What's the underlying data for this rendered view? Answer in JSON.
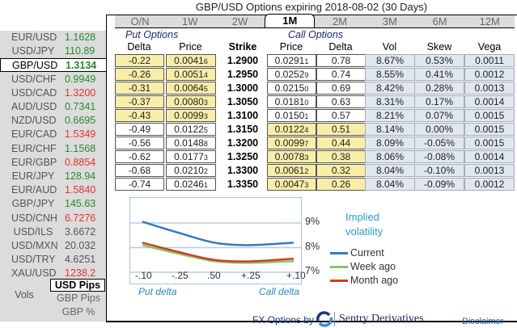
{
  "title": "GBP/USD Options expiring 2018-08-02 (30 Days)",
  "pairs": [
    {
      "name": "EUR/USD",
      "value": "1.1628",
      "dir": "up"
    },
    {
      "name": "USD/JPY",
      "value": "110.89",
      "dir": "up"
    },
    {
      "name": "GBP/USD",
      "value": "1.3134",
      "dir": "up",
      "selected": true
    },
    {
      "name": "USD/CHF",
      "value": "0.9949",
      "dir": "up"
    },
    {
      "name": "USD/CAD",
      "value": "1.3200",
      "dir": "down"
    },
    {
      "name": "AUD/USD",
      "value": "0.7341",
      "dir": "up"
    },
    {
      "name": "NZD/USD",
      "value": "0.6695",
      "dir": "up"
    },
    {
      "name": "EUR/CAD",
      "value": "1.5349",
      "dir": "down"
    },
    {
      "name": "EUR/CHF",
      "value": "1.1568",
      "dir": "up"
    },
    {
      "name": "EUR/GBP",
      "value": "0.8854",
      "dir": "down"
    },
    {
      "name": "EUR/JPY",
      "value": "128.94",
      "dir": "up"
    },
    {
      "name": "EUR/AUD",
      "value": "1.5840",
      "dir": "down"
    },
    {
      "name": "GBP/JPY",
      "value": "145.63",
      "dir": "up"
    },
    {
      "name": "USD/CNH",
      "value": "6.7276",
      "dir": "down"
    },
    {
      "name": "USD/ILS",
      "value": "3.6672",
      "dir": "flat"
    },
    {
      "name": "USD/MXN",
      "value": "20.032",
      "dir": "flat"
    },
    {
      "name": "USD/TRY",
      "value": "4.6251",
      "dir": "flat"
    },
    {
      "name": "XAU/USD",
      "value": "1238.2",
      "dir": "down"
    }
  ],
  "colors": {
    "up": "#2a8a2a",
    "down": "#e83030",
    "flat": "#555555",
    "itm": "#f8eea8",
    "vol": "#dfe7ef",
    "current": "#3a7ab8",
    "week": "#7ccc6c",
    "month": "#d83a1a"
  },
  "units": {
    "label": "Vols",
    "options": [
      "USD Pips",
      "GBP Pips",
      "GBP %"
    ],
    "selected": "USD Pips"
  },
  "tabs": [
    "O/N",
    "1W",
    "2W",
    "1M",
    "2M",
    "3M",
    "6M",
    "12M"
  ],
  "active_tab": "1M",
  "put_title": "Put Options",
  "call_title": "Call Options",
  "headers": [
    "Delta",
    "Price",
    "Strike",
    "Price",
    "Delta",
    "Vol",
    "Skew",
    "Vega"
  ],
  "rows": [
    {
      "pd": "-0.22",
      "pp": "0.0041",
      "pps": "6",
      "k": "1.2900",
      "cp": "0.0291",
      "cps": "1",
      "cd": "0.78",
      "vol": "8.67%",
      "skew": "0.53%",
      "vega": "0.0011",
      "put_itm": true
    },
    {
      "pd": "-0.26",
      "pp": "0.0051",
      "pps": "4",
      "k": "1.2950",
      "cp": "0.0252",
      "cps": "9",
      "cd": "0.74",
      "vol": "8.55%",
      "skew": "0.41%",
      "vega": "0.0012",
      "put_itm": true
    },
    {
      "pd": "-0.31",
      "pp": "0.0064",
      "pps": "5",
      "k": "1.3000",
      "cp": "0.0215",
      "cps": "0",
      "cd": "0.69",
      "vol": "8.42%",
      "skew": "0.28%",
      "vega": "0.0013",
      "put_itm": true
    },
    {
      "pd": "-0.37",
      "pp": "0.0080",
      "pps": "3",
      "k": "1.3050",
      "cp": "0.0181",
      "cps": "0",
      "cd": "0.63",
      "vol": "8.31%",
      "skew": "0.17%",
      "vega": "0.0014",
      "put_itm": true
    },
    {
      "pd": "-0.43",
      "pp": "0.0099",
      "pps": "3",
      "k": "1.3100",
      "cp": "0.0150",
      "cps": "1",
      "cd": "0.57",
      "vol": "8.21%",
      "skew": "0.07%",
      "vega": "0.0015",
      "put_itm": true
    },
    {
      "pd": "-0.49",
      "pp": "0.0122",
      "pps": "5",
      "k": "1.3150",
      "cp": "0.0122",
      "cps": "4",
      "cd": "0.51",
      "vol": "8.14%",
      "skew": "0.00%",
      "vega": "0.0015",
      "put_itm": false
    },
    {
      "pd": "-0.56",
      "pp": "0.0148",
      "pps": "8",
      "k": "1.3200",
      "cp": "0.0099",
      "cps": "7",
      "cd": "0.44",
      "vol": "8.09%",
      "skew": "-0.05%",
      "vega": "0.0015",
      "put_itm": false
    },
    {
      "pd": "-0.62",
      "pp": "0.0177",
      "pps": "3",
      "k": "1.3250",
      "cp": "0.0078",
      "cps": "3",
      "cd": "0.38",
      "vol": "8.06%",
      "skew": "-0.08%",
      "vega": "0.0014",
      "put_itm": false
    },
    {
      "pd": "-0.68",
      "pp": "0.0210",
      "pps": "2",
      "k": "1.3300",
      "cp": "0.0061",
      "cps": "2",
      "cd": "0.32",
      "vol": "8.04%",
      "skew": "-0.10%",
      "vega": "0.0013",
      "put_itm": false
    },
    {
      "pd": "-0.74",
      "pp": "0.0246",
      "pps": "1",
      "k": "1.3350",
      "cp": "0.0047",
      "cps": "3",
      "cd": "0.26",
      "vol": "8.04%",
      "skew": "-0.09%",
      "vega": "0.0012",
      "put_itm": false
    }
  ],
  "chart_data": {
    "type": "line",
    "title": "Implied volatility",
    "categories": [
      "-.10",
      "-.25",
      ".50",
      "+.25",
      "+.10"
    ],
    "xlabel_left": "Put delta",
    "xlabel_right": "Call delta",
    "yticks": [
      "9%",
      "8%",
      "7%"
    ],
    "ylim": [
      7,
      9
    ],
    "grid": true,
    "legend": "right",
    "series": [
      {
        "name": "Current",
        "values": [
          9.05,
          8.6,
          8.2,
          8.1,
          8.2
        ]
      },
      {
        "name": "Week ago",
        "values": [
          8.1,
          7.75,
          7.45,
          7.38,
          7.45
        ]
      },
      {
        "name": "Month ago",
        "values": [
          8.2,
          7.82,
          7.5,
          7.44,
          7.55
        ]
      }
    ]
  },
  "footer": {
    "by": "FX Options by",
    "brand": "Sentry Derivatives",
    "disclaimer": "Disclaimer"
  }
}
